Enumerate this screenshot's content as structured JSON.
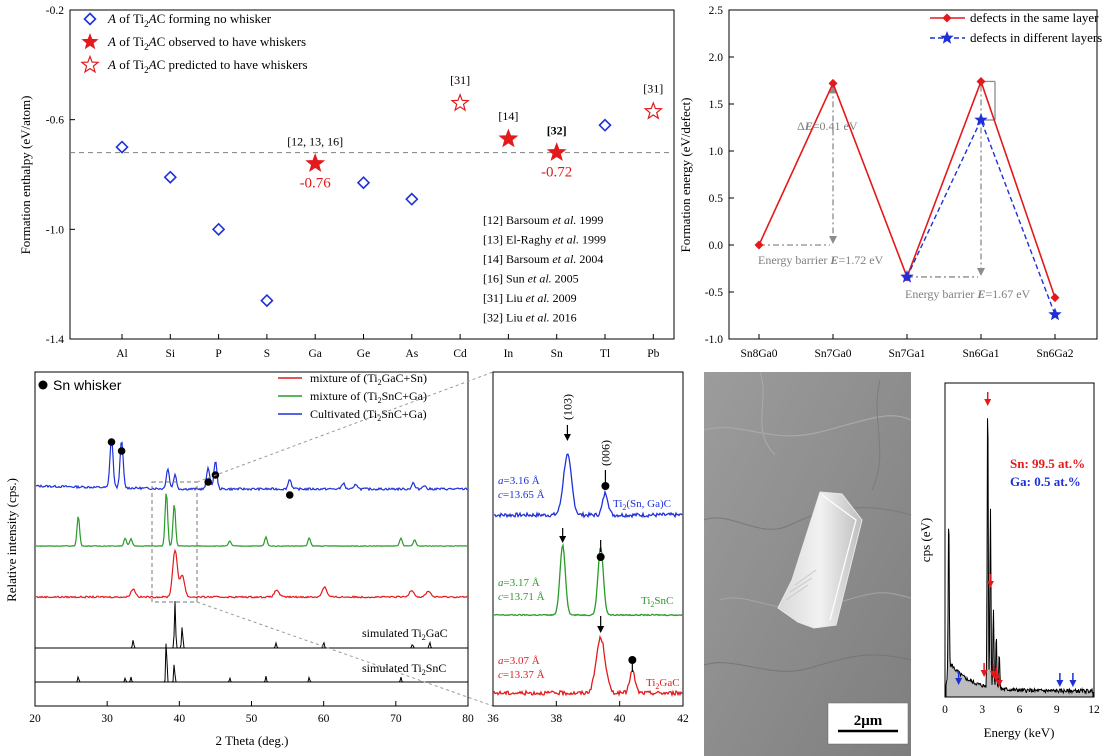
{
  "chart_data": [
    {
      "type": "scatter",
      "ylabel": "Formation enthalpy (eV/atom)",
      "ylim": [
        -1.4,
        -0.2
      ],
      "yticks": [
        "-0.2",
        "-0.6",
        "-1.0",
        "-1.4"
      ],
      "categories": [
        "Al",
        "Si",
        "P",
        "S",
        "Ga",
        "Ge",
        "As",
        "Cd",
        "In",
        "Sn",
        "Tl",
        "Pb"
      ],
      "reference_line": -0.72,
      "series": [
        {
          "name": "A of Ti2AC forming no whisker",
          "marker": "diamond-open",
          "color": "#1f30d9",
          "points": [
            {
              "x": "Al",
              "y": -0.7
            },
            {
              "x": "Si",
              "y": -0.81
            },
            {
              "x": "P",
              "y": -1.0
            },
            {
              "x": "S",
              "y": -1.26
            },
            {
              "x": "Ge",
              "y": -0.83
            },
            {
              "x": "As",
              "y": -0.89
            },
            {
              "x": "Tl",
              "y": -0.62
            }
          ]
        },
        {
          "name": "A of Ti2AC observed to have whiskers",
          "marker": "star-filled",
          "color": "#e31a1c",
          "points": [
            {
              "x": "Ga",
              "y": -0.76
            },
            {
              "x": "In",
              "y": -0.67
            },
            {
              "x": "Sn",
              "y": -0.72
            }
          ]
        },
        {
          "name": "A of Ti2AC predicted to have whiskers",
          "marker": "star-open",
          "color": "#e31a1c",
          "points": [
            {
              "x": "Cd",
              "y": -0.54
            },
            {
              "x": "Pb",
              "y": -0.57
            }
          ]
        }
      ],
      "legend_rows": [
        {
          "pre": "A",
          "mid": " of Ti",
          "sub": "2",
          "it": "A",
          "post": "C forming no whisker"
        },
        {
          "pre": "A",
          "mid": " of Ti",
          "sub": "2",
          "it": "A",
          "post": "C observed to have whiskers"
        },
        {
          "pre": "A",
          "mid": " of Ti",
          "sub": "2",
          "it": "A",
          "post": "C predicted to have whiskers"
        }
      ],
      "annotations": [
        {
          "text": "[12, 13, 16]",
          "at": "Ga",
          "y": -0.76
        },
        {
          "text": "-0.76",
          "at": "Ga",
          "y": -0.76
        },
        {
          "text": "[31]",
          "at": "Cd",
          "y": -0.54
        },
        {
          "text": "[14]",
          "at": "In",
          "y": -0.67
        },
        {
          "text": "[32]",
          "at": "Sn",
          "y": -0.72
        },
        {
          "text": "-0.72",
          "at": "Sn",
          "y": -0.72
        },
        {
          "text": "[31]",
          "at": "Pb",
          "y": -0.57
        }
      ],
      "references": [
        {
          "num": "[12]",
          "name": "Barsoum",
          "etal": "et al.",
          "year": "1999"
        },
        {
          "num": "[13]",
          "name": "El-Raghy",
          "etal": "et al.",
          "year": "1999"
        },
        {
          "num": "[14]",
          "name": "Barsoum",
          "etal": "et al.",
          "year": "2004"
        },
        {
          "num": "[16]",
          "name": "Sun",
          "etal": "et al.",
          "year": "2005"
        },
        {
          "num": "[31]",
          "name": "Liu",
          "etal": "et al.",
          "year": "2009"
        },
        {
          "num": "[32]",
          "name": "Liu",
          "etal": "et al.",
          "year": "2016"
        }
      ]
    },
    {
      "type": "line",
      "ylabel": "Formation energy (eV/defect)",
      "ylim": [
        -1.0,
        2.5
      ],
      "yticks": [
        "2.5",
        "2.0",
        "1.5",
        "1.0",
        "0.5",
        "0.0",
        "-0.5",
        "-1.0"
      ],
      "categories": [
        "Sn8Ga0",
        "Sn7Ga0",
        "Sn7Ga1",
        "Sn6Ga1",
        "Sn6Ga2"
      ],
      "series": [
        {
          "name": "defects in the same layer",
          "color": "#e31a1c",
          "marker": "diamond",
          "style": "solid",
          "values": [
            0.0,
            1.72,
            -0.34,
            1.74,
            -0.56
          ]
        },
        {
          "name": "defects in different layers",
          "color": "#1f30d9",
          "marker": "star",
          "style": "dashed",
          "values": [
            null,
            null,
            -0.34,
            1.33,
            -0.74
          ]
        }
      ],
      "annotations": [
        {
          "pre": "Energy barrier ",
          "it": "E",
          "post": "=1.72 eV"
        },
        {
          "pre": "Energy barrier ",
          "it": "E",
          "post": "=1.67 eV"
        },
        {
          "pre": "Δ",
          "it": "E",
          "post": "=0.41 eV"
        }
      ]
    },
    {
      "type": "line",
      "xlabel": "2 Theta (deg.)",
      "ylabel": "Relative intensity (cps.)",
      "xlim": [
        20,
        80
      ],
      "xticks": [
        "20",
        "30",
        "40",
        "50",
        "60",
        "70",
        "80"
      ],
      "marker_label": "Sn whisker",
      "legend": [
        {
          "pre": "mixture of (Ti",
          "sub": "2",
          "post": "GaC+Sn)",
          "color": "#e31a1c"
        },
        {
          "pre": "mixture of (Ti",
          "sub": "2",
          "post": "SnC+Ga)",
          "color": "#2a9a2a"
        },
        {
          "pre": "Cultivated (Ti",
          "sub": "2",
          "post": "SnC+Ga)",
          "color": "#1f30d9"
        }
      ],
      "series": [
        {
          "name": "Cultivated (Ti2SnC+Ga)",
          "color": "#1f30d9",
          "peaks": [
            30.6,
            32.0,
            38.4,
            39.4,
            44.0,
            45.0,
            55.3,
            62.7,
            64.5,
            72.4,
            73.9
          ]
        },
        {
          "name": "mixture of (Ti2SnC+Ga)",
          "color": "#2a9a2a",
          "peaks": [
            26.0,
            32.5,
            33.3,
            38.2,
            39.3,
            47.0,
            52.0,
            58.0,
            70.7,
            72.6
          ]
        },
        {
          "name": "mixture of (Ti2GaC+Sn)",
          "color": "#e31a1c",
          "peaks": [
            33.6,
            39.4,
            40.4,
            53.5,
            60.1,
            72.2,
            74.5
          ]
        },
        {
          "name": "simulated Ti2GaC",
          "color": "#000000",
          "peaks": [
            33.6,
            39.4,
            40.4,
            53.4,
            60.0,
            72.3,
            74.7
          ]
        },
        {
          "name": "simulated Ti2SnC",
          "color": "#000000",
          "peaks": [
            26.0,
            32.5,
            33.3,
            38.2,
            39.3,
            47.0,
            52.0,
            58.0,
            70.7
          ]
        }
      ],
      "labels": [
        {
          "pre": "simulated Ti",
          "sub": "2",
          "post": "GaC"
        },
        {
          "pre": "simulated Ti",
          "sub": "2",
          "post": "SnC"
        }
      ]
    },
    {
      "type": "line",
      "xlim": [
        36,
        42
      ],
      "xticks": [
        "36",
        "38",
        "40",
        "42"
      ],
      "peak_labels": [
        "(103)",
        "(006)"
      ],
      "series": [
        {
          "name": "Ti2(Sn, Ga)C",
          "color": "#1f30d9",
          "peaks": [
            38.35,
            39.55
          ],
          "a": "3.16 Å",
          "c": "13.65 Å"
        },
        {
          "name": "Ti2SnC",
          "color": "#2a9a2a",
          "peaks": [
            38.2,
            39.4
          ],
          "a": "3.17 Å",
          "c": "13.71 Å"
        },
        {
          "name": "Ti2GaC",
          "color": "#e31a1c",
          "peaks": [
            39.4,
            40.4
          ],
          "a": "3.07 Å",
          "c": "13.37 Å"
        }
      ],
      "labels": [
        {
          "pre": "Ti",
          "sub": "2",
          "post": "(Sn, Ga)C"
        },
        {
          "pre": "Ti",
          "sub": "2",
          "post": "SnC"
        },
        {
          "pre": "Ti",
          "sub": "2",
          "post": "GaC"
        }
      ]
    },
    {
      "type": "bar",
      "xlabel": "Energy (keV)",
      "ylabel": "cps (eV)",
      "xlim": [
        0,
        12
      ],
      "xticks": [
        "0",
        "3",
        "6",
        "9",
        "12"
      ],
      "composition": [
        {
          "text": "Sn: 99.5 at.%",
          "color": "#e31a1c"
        },
        {
          "text": "Ga: 0.5 at.%",
          "color": "#1f30d9"
        }
      ],
      "peaks": [
        {
          "x": 0.3,
          "y": 0.55
        },
        {
          "x": 3.44,
          "y": 1.0
        },
        {
          "x": 3.66,
          "y": 0.62
        },
        {
          "x": 3.9,
          "y": 0.27
        },
        {
          "x": 4.13,
          "y": 0.18
        },
        {
          "x": 4.37,
          "y": 0.12
        }
      ]
    }
  ],
  "micrograph": {
    "scale_label": "2μm"
  }
}
